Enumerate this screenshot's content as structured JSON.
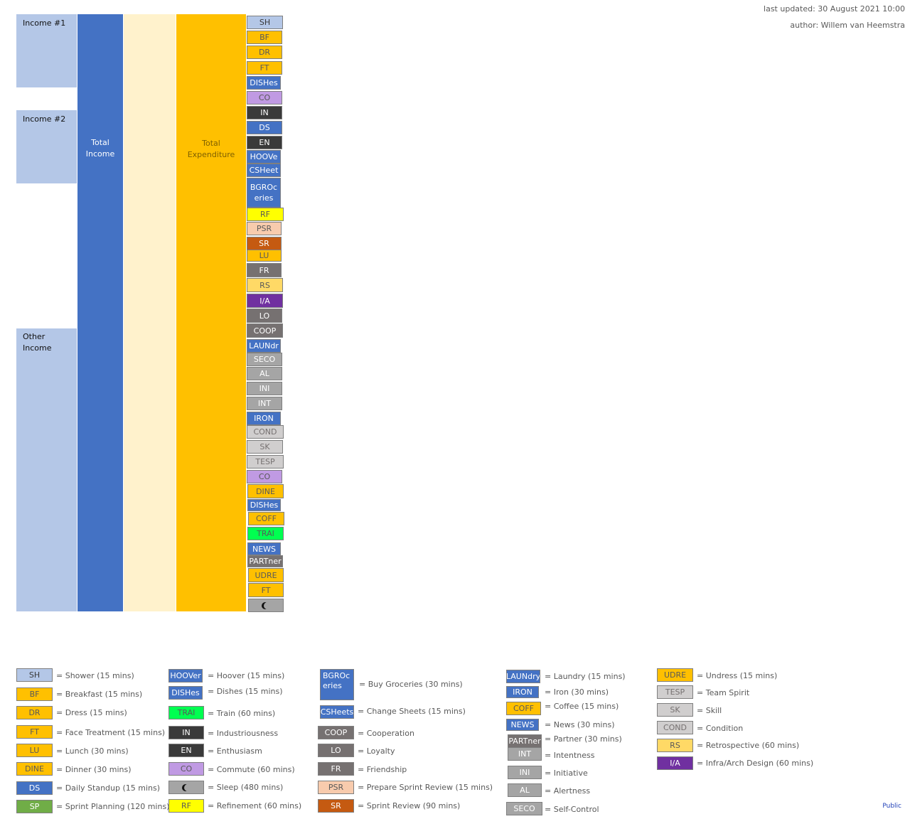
{
  "header": {
    "last_updated": "last updated: 30 August 2021 10:00",
    "author": "author: Willem van Heemstra"
  },
  "columns": {
    "income1": "Income #1",
    "income2": "Income #2",
    "other_income": "Other\nIncome",
    "total_income": "Total\nIncome",
    "total_expenditure": "Total\nExpenditure"
  },
  "colors": {
    "light_blue": "#b4c7e7",
    "blue": "#4472c4",
    "cream": "#fff2cc",
    "orange": "#ffc000",
    "lavender": "#c09ae3",
    "dark": "#3a3a3a",
    "yellow": "#ffff00",
    "peach": "#f8cbad",
    "rust": "#c55a11",
    "gray": "#767171",
    "light_gold": "#ffd966",
    "purple": "#7030a0",
    "mid_gray": "#a5a5a5",
    "light_gray": "#d0cece",
    "green": "#00ff50"
  },
  "stack": [
    {
      "label": "SH",
      "color": "#b4c7e7",
      "fg": "#3a3a3a"
    },
    {
      "label": "BF",
      "color": "#ffc000",
      "fg": "#595959"
    },
    {
      "label": "DR",
      "color": "#ffc000",
      "fg": "#595959"
    },
    {
      "label": "FT",
      "color": "#ffc000",
      "fg": "#595959"
    },
    {
      "label": "DISHes",
      "color": "#4472c4",
      "fg": "#ffffff"
    },
    {
      "label": "CO",
      "color": "#c09ae3",
      "fg": "#595959"
    },
    {
      "label": "IN",
      "color": "#3a3a3a",
      "fg": "#ffffff"
    },
    {
      "label": "DS",
      "color": "#4472c4",
      "fg": "#ffffff"
    },
    {
      "label": "EN",
      "color": "#3a3a3a",
      "fg": "#ffffff"
    },
    {
      "label": "HOOVe",
      "color": "#4472c4",
      "fg": "#ffffff"
    },
    {
      "label": "CSHeet",
      "color": "#4472c4",
      "fg": "#ffffff"
    },
    {
      "label": "BGROc\neries",
      "color": "#4472c4",
      "fg": "#ffffff"
    },
    {
      "label": "RF",
      "color": "#ffff00",
      "fg": "#595959"
    },
    {
      "label": "PSR",
      "color": "#f8cbad",
      "fg": "#595959"
    },
    {
      "label": "SR",
      "color": "#c55a11",
      "fg": "#ffffff"
    },
    {
      "label": "LU",
      "color": "#ffc000",
      "fg": "#595959"
    },
    {
      "label": "FR",
      "color": "#767171",
      "fg": "#ffffff"
    },
    {
      "label": "RS",
      "color": "#ffd966",
      "fg": "#595959"
    },
    {
      "label": "I/A",
      "color": "#7030a0",
      "fg": "#ffffff"
    },
    {
      "label": "LO",
      "color": "#767171",
      "fg": "#ffffff"
    },
    {
      "label": "COOP",
      "color": "#767171",
      "fg": "#ffffff"
    },
    {
      "label": "LAUNdr",
      "color": "#4472c4",
      "fg": "#ffffff"
    },
    {
      "label": "SECO",
      "color": "#a5a5a5",
      "fg": "#ffffff"
    },
    {
      "label": "AL",
      "color": "#a5a5a5",
      "fg": "#ffffff"
    },
    {
      "label": "INI",
      "color": "#a5a5a5",
      "fg": "#ffffff"
    },
    {
      "label": "INT",
      "color": "#a5a5a5",
      "fg": "#ffffff"
    },
    {
      "label": "IRON",
      "color": "#4472c4",
      "fg": "#ffffff"
    },
    {
      "label": "COND",
      "color": "#d0cece",
      "fg": "#767171"
    },
    {
      "label": "SK",
      "color": "#d0cece",
      "fg": "#767171"
    },
    {
      "label": "TESP",
      "color": "#d0cece",
      "fg": "#767171"
    },
    {
      "label": "CO",
      "color": "#c09ae3",
      "fg": "#595959"
    },
    {
      "label": "DINE",
      "color": "#ffc000",
      "fg": "#595959"
    },
    {
      "label": "DISHes",
      "color": "#4472c4",
      "fg": "#ffffff"
    },
    {
      "label": "COFF",
      "color": "#ffc000",
      "fg": "#595959"
    },
    {
      "label": "TRAI",
      "color": "#00ff50",
      "fg": "#595959"
    },
    {
      "label": "NEWS",
      "color": "#4472c4",
      "fg": "#ffffff"
    },
    {
      "label": "PARTner",
      "color": "#767171",
      "fg": "#ffffff"
    },
    {
      "label": "UDRE",
      "color": "#ffc000",
      "fg": "#595959"
    },
    {
      "label": "FT",
      "color": "#ffc000",
      "fg": "#595959"
    },
    {
      "label": "",
      "color": "#a5a5a5",
      "fg": "#111111",
      "icon": "moon-icon"
    }
  ],
  "legend": [
    {
      "label": "SH",
      "text": "= Shower (15 mins)",
      "color": "#b4c7e7",
      "fg": "#3a3a3a"
    },
    {
      "label": "BF",
      "text": "= Breakfast (15 mins)",
      "color": "#ffc000",
      "fg": "#595959"
    },
    {
      "label": "DR",
      "text": "= Dress (15 mins)",
      "color": "#ffc000",
      "fg": "#595959"
    },
    {
      "label": "FT",
      "text": "= Face Treatment  (15 mins)",
      "color": "#ffc000",
      "fg": "#595959"
    },
    {
      "label": "LU",
      "text": "= Lunch (30 mins)",
      "color": "#ffc000",
      "fg": "#595959"
    },
    {
      "label": "DINE",
      "text": "= Dinner (30 mins)",
      "color": "#ffc000",
      "fg": "#595959"
    },
    {
      "label": "DS",
      "text": "= Daily Standup (15 mins)",
      "color": "#4472c4",
      "fg": "#ffffff"
    },
    {
      "label": "SP",
      "text": "= Sprint Planning (120 mins)",
      "color": "#70ad47",
      "fg": "#ffffff"
    },
    {
      "label": "HOOVer",
      "text": "= Hoover (15 mins)",
      "color": "#4472c4",
      "fg": "#ffffff"
    },
    {
      "label": "DISHes",
      "text": "= Dishes (15 mins)",
      "color": "#4472c4",
      "fg": "#ffffff"
    },
    {
      "label": "TRAI",
      "text": "= Train (60 mins)",
      "color": "#00ff50",
      "fg": "#595959"
    },
    {
      "label": "IN",
      "text": "= Industriousness",
      "color": "#3a3a3a",
      "fg": "#ffffff"
    },
    {
      "label": "EN",
      "text": "= Enthusiasm",
      "color": "#3a3a3a",
      "fg": "#ffffff"
    },
    {
      "label": "CO",
      "text": "= Commute  (60 mins)",
      "color": "#c09ae3",
      "fg": "#595959"
    },
    {
      "label": "",
      "text": "= Sleep (480 mins)",
      "color": "#a5a5a5",
      "fg": "#111111",
      "icon": "moon-icon"
    },
    {
      "label": "RF",
      "text": "= Refinement  (60 mins)",
      "color": "#ffff00",
      "fg": "#595959"
    },
    {
      "label": "BGROc\neries",
      "text": "= Buy Groceries (30 mins)",
      "color": "#4472c4",
      "fg": "#ffffff"
    },
    {
      "label": "CSHeets",
      "text": "= Change Sheets  (15 mins)",
      "color": "#4472c4",
      "fg": "#ffffff"
    },
    {
      "label": "COOP",
      "text": "= Cooperation",
      "color": "#767171",
      "fg": "#ffffff"
    },
    {
      "label": "LO",
      "text": "= Loyalty",
      "color": "#767171",
      "fg": "#ffffff"
    },
    {
      "label": "FR",
      "text": "= Friendship",
      "color": "#767171",
      "fg": "#ffffff"
    },
    {
      "label": "PSR",
      "text": "= Prepare Sprint Review (15 mins)",
      "color": "#f8cbad",
      "fg": "#595959"
    },
    {
      "label": "SR",
      "text": "= Sprint Review  (90 mins)",
      "color": "#c55a11",
      "fg": "#ffffff"
    },
    {
      "label": "LAUNdry",
      "text": "= Laundry (15 mins)",
      "color": "#4472c4",
      "fg": "#ffffff"
    },
    {
      "label": "IRON",
      "text": "= Iron (30 mins)",
      "color": "#4472c4",
      "fg": "#ffffff"
    },
    {
      "label": "COFF",
      "text": "= Coffee  (15 mins)",
      "color": "#ffc000",
      "fg": "#595959"
    },
    {
      "label": "NEWS",
      "text": "= News  (30 mins)",
      "color": "#4472c4",
      "fg": "#ffffff"
    },
    {
      "label": "PARTner",
      "text": "= Partner (30 mins)",
      "color": "#767171",
      "fg": "#ffffff"
    },
    {
      "label": "INT",
      "text": "= Intentness",
      "color": "#a5a5a5",
      "fg": "#ffffff"
    },
    {
      "label": "INI",
      "text": "= Initiative",
      "color": "#a5a5a5",
      "fg": "#ffffff"
    },
    {
      "label": "AL",
      "text": "= Alertness",
      "color": "#a5a5a5",
      "fg": "#ffffff"
    },
    {
      "label": "SECO",
      "text": "= Self-Control",
      "color": "#a5a5a5",
      "fg": "#ffffff"
    },
    {
      "label": "UDRE",
      "text": "= Undress (15 mins)",
      "color": "#ffc000",
      "fg": "#595959"
    },
    {
      "label": "TESP",
      "text": "= Team Spirit",
      "color": "#d0cece",
      "fg": "#767171"
    },
    {
      "label": "SK",
      "text": "= Skill",
      "color": "#d0cece",
      "fg": "#767171"
    },
    {
      "label": "COND",
      "text": "= Condition",
      "color": "#d0cece",
      "fg": "#767171"
    },
    {
      "label": "RS",
      "text": "= Retrospective (60 mins)",
      "color": "#ffd966",
      "fg": "#595959"
    },
    {
      "label": "I/A",
      "text": "= Infra/Arch Design (60 mins)",
      "color": "#7030a0",
      "fg": "#ffffff"
    }
  ],
  "footer": {
    "classification": "Public"
  }
}
